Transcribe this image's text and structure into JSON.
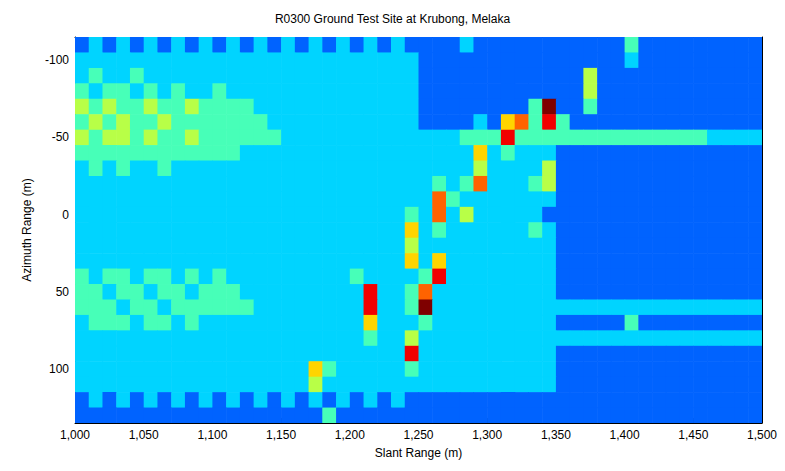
{
  "chart_data": {
    "type": "heatmap",
    "title": "R0300 Ground Test Site at Krubong, Melaka",
    "x_label": "Slant Range (m)",
    "y_label": "Azimuth Range (m)",
    "xlim": [
      1000,
      1500
    ],
    "ylim": [
      135,
      -115
    ],
    "xticks": [
      1000,
      1050,
      1100,
      1150,
      1200,
      1250,
      1300,
      1350,
      1400,
      1450,
      1500
    ],
    "yticks": [
      -100,
      -50,
      0,
      50,
      100
    ],
    "grid": false,
    "color_range": [
      0,
      9
    ],
    "x_edges": [
      1000,
      1010,
      1020,
      1030,
      1040,
      1050,
      1060,
      1070,
      1080,
      1090,
      1100,
      1110,
      1120,
      1130,
      1140,
      1150,
      1160,
      1170,
      1180,
      1190,
      1200,
      1210,
      1220,
      1230,
      1240,
      1250,
      1260,
      1270,
      1280,
      1290,
      1300,
      1310,
      1320,
      1330,
      1340,
      1350,
      1360,
      1370,
      1380,
      1390,
      1400,
      1410,
      1420,
      1430,
      1440,
      1450,
      1460,
      1470,
      1480,
      1490,
      1500
    ],
    "y_edges": [
      -115,
      -105,
      -95,
      -85,
      -75,
      -65,
      -55,
      -45,
      -35,
      -25,
      -15,
      -5,
      5,
      15,
      25,
      35,
      45,
      55,
      65,
      75,
      85,
      95,
      105,
      115,
      125,
      135
    ],
    "cells": [
      [
        2,
        3,
        2,
        3,
        2,
        3,
        2,
        3,
        2,
        3,
        2,
        3,
        2,
        3,
        2,
        3,
        2,
        3,
        2,
        3,
        2,
        3,
        2,
        3,
        2,
        2,
        2,
        2,
        3,
        2,
        2,
        2,
        2,
        2,
        2,
        2,
        2,
        2,
        2,
        2,
        4,
        2,
        2,
        2,
        2,
        2,
        2,
        2,
        2,
        2
      ],
      [
        3,
        3,
        3,
        3,
        3,
        3,
        3,
        3,
        3,
        3,
        3,
        3,
        3,
        3,
        3,
        3,
        3,
        3,
        3,
        3,
        3,
        3,
        3,
        3,
        3,
        2,
        2,
        2,
        2,
        2,
        2,
        2,
        2,
        2,
        2,
        2,
        2,
        2,
        2,
        2,
        3,
        2,
        2,
        2,
        2,
        2,
        2,
        2,
        2,
        2
      ],
      [
        3,
        4,
        3,
        3,
        4,
        3,
        3,
        3,
        3,
        3,
        3,
        3,
        3,
        3,
        3,
        3,
        3,
        3,
        3,
        3,
        3,
        3,
        3,
        3,
        3,
        2,
        2,
        2,
        2,
        2,
        2,
        2,
        2,
        2,
        2,
        2,
        2,
        5,
        2,
        2,
        2,
        2,
        2,
        2,
        2,
        2,
        2,
        2,
        2,
        2
      ],
      [
        4,
        3,
        4,
        4,
        3,
        4,
        3,
        4,
        3,
        3,
        4,
        3,
        3,
        3,
        3,
        3,
        3,
        3,
        3,
        3,
        3,
        3,
        3,
        3,
        3,
        2,
        2,
        2,
        2,
        2,
        2,
        2,
        2,
        2,
        2,
        2,
        2,
        5,
        2,
        2,
        2,
        2,
        2,
        2,
        2,
        2,
        2,
        2,
        2,
        2
      ],
      [
        5,
        4,
        5,
        4,
        4,
        5,
        4,
        4,
        5,
        4,
        4,
        4,
        4,
        3,
        3,
        3,
        3,
        3,
        3,
        3,
        3,
        3,
        3,
        3,
        3,
        2,
        2,
        2,
        2,
        2,
        2,
        2,
        2,
        4,
        9,
        2,
        2,
        4,
        2,
        2,
        2,
        2,
        2,
        2,
        2,
        2,
        2,
        2,
        2,
        2
      ],
      [
        4,
        5,
        4,
        5,
        4,
        4,
        5,
        4,
        4,
        4,
        4,
        4,
        4,
        4,
        3,
        3,
        3,
        3,
        3,
        3,
        3,
        3,
        3,
        3,
        3,
        2,
        2,
        2,
        2,
        3,
        2,
        6,
        7,
        4,
        8,
        4,
        2,
        2,
        2,
        2,
        2,
        2,
        2,
        2,
        2,
        2,
        2,
        2,
        2,
        2
      ],
      [
        5,
        4,
        5,
        5,
        4,
        5,
        4,
        4,
        5,
        4,
        4,
        4,
        4,
        4,
        4,
        3,
        3,
        3,
        3,
        3,
        3,
        3,
        3,
        3,
        3,
        3,
        3,
        3,
        4,
        4,
        4,
        8,
        4,
        4,
        4,
        4,
        4,
        4,
        4,
        4,
        4,
        4,
        4,
        4,
        4,
        4,
        3,
        3,
        3,
        3
      ],
      [
        4,
        4,
        4,
        4,
        4,
        4,
        4,
        4,
        4,
        4,
        4,
        4,
        3,
        3,
        3,
        3,
        3,
        3,
        3,
        3,
        3,
        3,
        3,
        3,
        3,
        3,
        3,
        3,
        3,
        6,
        3,
        4,
        3,
        3,
        3,
        2,
        2,
        2,
        2,
        2,
        2,
        2,
        2,
        2,
        2,
        2,
        2,
        2,
        2,
        2
      ],
      [
        3,
        4,
        3,
        4,
        3,
        3,
        4,
        3,
        3,
        3,
        3,
        3,
        3,
        3,
        3,
        3,
        3,
        3,
        3,
        3,
        3,
        3,
        3,
        3,
        3,
        3,
        3,
        3,
        3,
        5,
        3,
        3,
        3,
        3,
        5,
        2,
        2,
        2,
        2,
        2,
        2,
        2,
        2,
        2,
        2,
        2,
        2,
        2,
        2,
        2
      ],
      [
        3,
        3,
        3,
        3,
        3,
        3,
        3,
        3,
        3,
        3,
        3,
        3,
        3,
        3,
        3,
        3,
        3,
        3,
        3,
        3,
        3,
        3,
        3,
        3,
        3,
        3,
        4,
        3,
        4,
        7,
        3,
        3,
        3,
        4,
        5,
        2,
        2,
        2,
        2,
        2,
        2,
        2,
        2,
        2,
        2,
        2,
        2,
        2,
        2,
        2
      ],
      [
        3,
        3,
        3,
        3,
        3,
        3,
        3,
        3,
        3,
        3,
        3,
        3,
        3,
        3,
        3,
        3,
        3,
        3,
        3,
        3,
        3,
        3,
        3,
        3,
        3,
        3,
        7,
        4,
        3,
        3,
        3,
        3,
        3,
        3,
        3,
        2,
        2,
        2,
        2,
        2,
        2,
        2,
        2,
        2,
        2,
        2,
        2,
        2,
        2,
        2
      ],
      [
        3,
        3,
        3,
        3,
        3,
        3,
        3,
        3,
        3,
        3,
        3,
        3,
        3,
        3,
        3,
        3,
        3,
        3,
        3,
        3,
        3,
        3,
        3,
        3,
        4,
        3,
        7,
        3,
        5,
        3,
        3,
        3,
        3,
        3,
        2,
        2,
        2,
        2,
        2,
        2,
        2,
        2,
        2,
        2,
        2,
        2,
        2,
        2,
        2,
        2
      ],
      [
        3,
        3,
        3,
        3,
        3,
        3,
        3,
        3,
        3,
        3,
        3,
        3,
        3,
        3,
        3,
        3,
        3,
        3,
        3,
        3,
        3,
        3,
        3,
        3,
        6,
        3,
        4,
        3,
        3,
        3,
        3,
        3,
        3,
        4,
        3,
        2,
        2,
        2,
        2,
        2,
        2,
        2,
        2,
        2,
        2,
        2,
        2,
        2,
        2,
        2
      ],
      [
        3,
        3,
        3,
        3,
        3,
        3,
        3,
        3,
        3,
        3,
        3,
        3,
        3,
        3,
        3,
        3,
        3,
        3,
        3,
        3,
        3,
        3,
        3,
        3,
        5,
        3,
        3,
        3,
        3,
        3,
        3,
        3,
        3,
        3,
        3,
        2,
        2,
        2,
        2,
        2,
        2,
        2,
        2,
        2,
        2,
        2,
        2,
        2,
        2,
        2
      ],
      [
        3,
        3,
        3,
        3,
        3,
        3,
        3,
        3,
        3,
        3,
        3,
        3,
        3,
        3,
        3,
        3,
        3,
        3,
        3,
        3,
        3,
        3,
        3,
        3,
        6,
        3,
        6,
        3,
        3,
        3,
        3,
        3,
        3,
        3,
        3,
        2,
        2,
        2,
        2,
        2,
        2,
        2,
        2,
        2,
        2,
        2,
        2,
        2,
        2,
        2
      ],
      [
        4,
        3,
        4,
        4,
        3,
        4,
        4,
        3,
        4,
        3,
        4,
        3,
        3,
        3,
        3,
        3,
        3,
        3,
        3,
        3,
        4,
        3,
        3,
        3,
        3,
        4,
        8,
        3,
        3,
        3,
        3,
        3,
        3,
        3,
        3,
        2,
        2,
        2,
        2,
        2,
        2,
        2,
        2,
        2,
        2,
        2,
        2,
        2,
        2,
        2
      ],
      [
        4,
        4,
        3,
        4,
        4,
        3,
        4,
        4,
        3,
        4,
        4,
        4,
        3,
        3,
        3,
        3,
        3,
        3,
        3,
        3,
        3,
        8,
        3,
        3,
        4,
        7,
        3,
        3,
        3,
        3,
        3,
        3,
        3,
        3,
        3,
        2,
        2,
        2,
        2,
        2,
        2,
        2,
        2,
        2,
        2,
        2,
        2,
        2,
        2,
        2
      ],
      [
        4,
        4,
        4,
        3,
        4,
        4,
        3,
        4,
        4,
        4,
        4,
        4,
        4,
        3,
        3,
        3,
        3,
        3,
        3,
        3,
        3,
        8,
        3,
        3,
        4,
        9,
        3,
        3,
        3,
        3,
        3,
        3,
        3,
        3,
        3,
        3,
        3,
        3,
        3,
        3,
        3,
        3,
        3,
        3,
        3,
        3,
        3,
        3,
        3,
        3
      ],
      [
        3,
        4,
        4,
        4,
        3,
        4,
        4,
        3,
        4,
        3,
        3,
        3,
        3,
        3,
        3,
        3,
        3,
        3,
        3,
        3,
        3,
        6,
        3,
        3,
        3,
        4,
        3,
        3,
        3,
        3,
        3,
        3,
        3,
        3,
        3,
        2,
        2,
        2,
        2,
        2,
        4,
        2,
        2,
        2,
        2,
        2,
        2,
        2,
        2,
        2
      ],
      [
        3,
        3,
        3,
        3,
        3,
        3,
        3,
        3,
        3,
        3,
        3,
        3,
        3,
        3,
        3,
        3,
        3,
        3,
        3,
        3,
        3,
        4,
        3,
        3,
        5,
        3,
        3,
        3,
        3,
        3,
        3,
        3,
        3,
        3,
        3,
        3,
        3,
        3,
        3,
        3,
        3,
        3,
        3,
        3,
        3,
        3,
        3,
        3,
        3,
        3
      ],
      [
        3,
        3,
        3,
        3,
        3,
        3,
        3,
        3,
        3,
        3,
        3,
        3,
        3,
        3,
        3,
        3,
        3,
        3,
        3,
        3,
        3,
        3,
        3,
        3,
        8,
        3,
        3,
        3,
        3,
        3,
        3,
        3,
        3,
        3,
        3,
        2,
        2,
        2,
        2,
        2,
        2,
        2,
        2,
        2,
        2,
        2,
        2,
        2,
        2,
        2
      ],
      [
        3,
        3,
        3,
        3,
        3,
        3,
        3,
        3,
        3,
        3,
        3,
        3,
        3,
        3,
        3,
        3,
        3,
        6,
        4,
        3,
        3,
        3,
        3,
        3,
        4,
        3,
        3,
        3,
        3,
        3,
        3,
        3,
        3,
        3,
        3,
        2,
        2,
        2,
        2,
        2,
        2,
        2,
        2,
        2,
        2,
        2,
        2,
        2,
        2,
        2
      ],
      [
        3,
        3,
        3,
        3,
        3,
        3,
        3,
        3,
        3,
        3,
        3,
        3,
        3,
        3,
        3,
        3,
        3,
        5,
        3,
        3,
        3,
        3,
        3,
        3,
        3,
        3,
        3,
        3,
        3,
        3,
        3,
        3,
        3,
        3,
        3,
        2,
        2,
        2,
        2,
        2,
        2,
        2,
        2,
        2,
        2,
        2,
        2,
        2,
        2,
        2
      ],
      [
        2,
        3,
        2,
        3,
        2,
        3,
        2,
        3,
        2,
        3,
        2,
        3,
        2,
        3,
        2,
        3,
        2,
        3,
        2,
        3,
        2,
        3,
        2,
        3,
        2,
        2,
        2,
        2,
        2,
        2,
        2,
        2,
        2,
        2,
        2,
        2,
        2,
        2,
        2,
        2,
        2,
        2,
        2,
        2,
        2,
        2,
        2,
        2,
        2,
        2
      ],
      [
        2,
        2,
        2,
        2,
        2,
        2,
        2,
        2,
        2,
        2,
        2,
        2,
        2,
        2,
        2,
        2,
        2,
        2,
        4,
        2,
        2,
        2,
        2,
        2,
        2,
        2,
        2,
        2,
        2,
        2,
        2,
        2,
        2,
        2,
        2,
        2,
        2,
        2,
        2,
        2,
        2,
        2,
        2,
        2,
        2,
        2,
        2,
        2,
        2,
        2
      ]
    ]
  }
}
